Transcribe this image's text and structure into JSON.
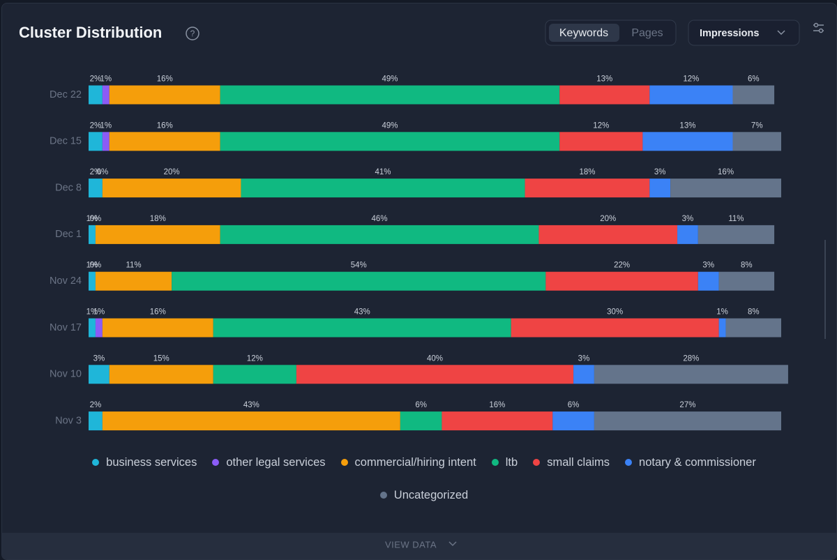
{
  "header": {
    "title": "Cluster Distribution",
    "tabs": [
      "Keywords",
      "Pages"
    ],
    "metric": "Impressions"
  },
  "chart_data": {
    "type": "bar",
    "stacked": true,
    "orientation": "horizontal",
    "categories": [
      "Dec 22",
      "Dec 15",
      "Dec 8",
      "Dec 1",
      "Nov 24",
      "Nov 17",
      "Nov 10",
      "Nov 3"
    ],
    "xlim": [
      0,
      100
    ],
    "legend": "bottom",
    "series": [
      {
        "name": "business services",
        "color": "#1fb6d9",
        "values": [
          2,
          2,
          2,
          1,
          1,
          1,
          3,
          2
        ],
        "value_labels": [
          "2%",
          "2%",
          "2%",
          "1%",
          "1%",
          "1%",
          "3%",
          "2%"
        ]
      },
      {
        "name": "other legal services",
        "color": "#8b5cf6",
        "values": [
          1,
          1,
          0,
          0,
          0,
          1,
          null,
          null
        ],
        "value_labels": [
          "1%",
          "1%",
          "0%",
          "0%",
          "0%",
          "1%",
          null,
          null
        ]
      },
      {
        "name": "commercial/hiring intent",
        "color": "#f59e0b",
        "values": [
          16,
          16,
          20,
          18,
          11,
          16,
          15,
          43
        ],
        "value_labels": [
          "16%",
          "16%",
          "20%",
          "18%",
          "11%",
          "16%",
          "15%",
          "43%"
        ]
      },
      {
        "name": "ltb",
        "color": "#10b981",
        "values": [
          49,
          49,
          41,
          46,
          54,
          43,
          12,
          6
        ],
        "value_labels": [
          "49%",
          "49%",
          "41%",
          "46%",
          "54%",
          "43%",
          "12%",
          "6%"
        ]
      },
      {
        "name": "small claims",
        "color": "#ef4444",
        "values": [
          13,
          12,
          18,
          20,
          22,
          30,
          40,
          16
        ],
        "value_labels": [
          "13%",
          "12%",
          "18%",
          "20%",
          "22%",
          "30%",
          "40%",
          "16%"
        ]
      },
      {
        "name": "notary & commissioner",
        "color": "#3b82f6",
        "values": [
          12,
          13,
          3,
          3,
          3,
          1,
          3,
          6
        ],
        "value_labels": [
          "12%",
          "13%",
          "3%",
          "3%",
          "3%",
          "1%",
          "3%",
          "6%"
        ]
      },
      {
        "name": "Uncategorized",
        "color": "#64748b",
        "values": [
          6,
          7,
          16,
          11,
          8,
          8,
          28,
          27
        ],
        "value_labels": [
          "6%",
          "7%",
          "16%",
          "11%",
          "8%",
          "8%",
          "28%",
          "27%"
        ]
      }
    ]
  },
  "footer": {
    "button": "VIEW DATA"
  }
}
